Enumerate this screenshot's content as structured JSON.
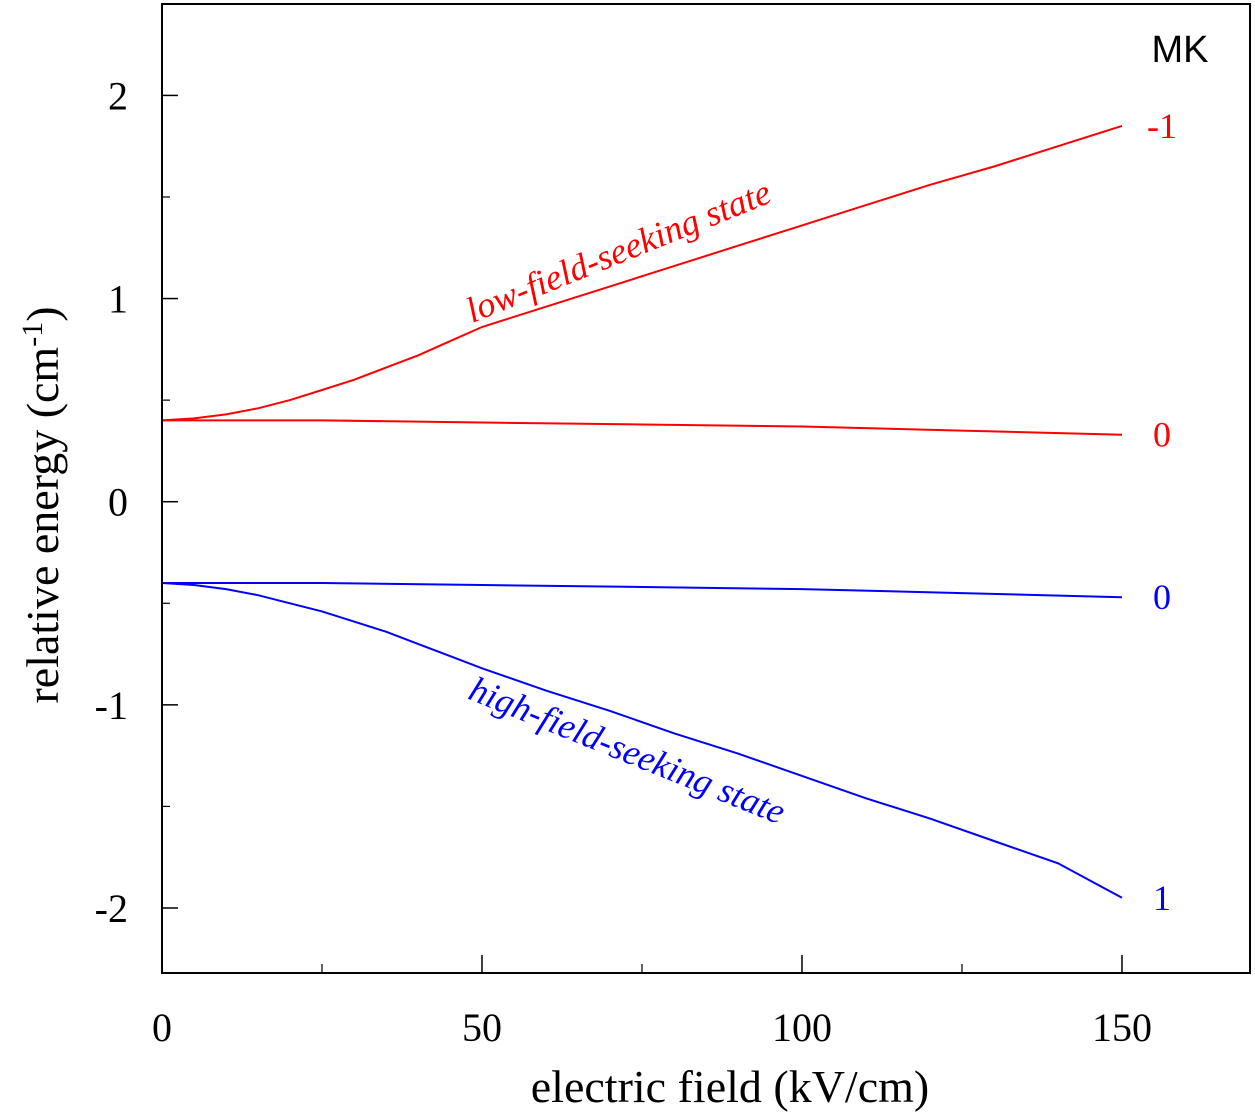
{
  "chart_data": {
    "type": "line",
    "title": "",
    "xlabel": "electric field (kV/cm)",
    "ylabel_main": "relative energy (cm",
    "ylabel_sup": "-1",
    "ylabel_close": ")",
    "xlim": [
      0,
      170
    ],
    "ylim": [
      -2.32,
      2.45
    ],
    "x_ticks": [
      0,
      50,
      100,
      150
    ],
    "x_tick_labels": [
      "0",
      "50",
      "100",
      "150"
    ],
    "x_minor_ticks": [
      25,
      75,
      125
    ],
    "y_ticks": [
      -2,
      -1,
      0,
      1,
      2
    ],
    "y_tick_labels": [
      "-2",
      "-1",
      "0",
      "1",
      "2"
    ],
    "y_minor_ticks": [
      -1.5,
      -0.5,
      0.5,
      1.5
    ],
    "legend_title": "MK",
    "series": [
      {
        "name": "low-field-seeking state",
        "mk": "-1",
        "color": "#ff0000",
        "label_angle": -22,
        "x": [
          0,
          5,
          10,
          15,
          20,
          25,
          30,
          35,
          40,
          45,
          50,
          60,
          70,
          80,
          90,
          100,
          110,
          120,
          130,
          140,
          150
        ],
        "y": [
          0.4,
          0.41,
          0.43,
          0.46,
          0.5,
          0.55,
          0.6,
          0.66,
          0.72,
          0.79,
          0.86,
          0.96,
          1.06,
          1.16,
          1.26,
          1.36,
          1.46,
          1.56,
          1.65,
          1.75,
          1.85
        ]
      },
      {
        "name": "",
        "mk": "0",
        "color": "#ff0000",
        "x": [
          0,
          25,
          50,
          75,
          100,
          125,
          150
        ],
        "y": [
          0.4,
          0.4,
          0.39,
          0.38,
          0.37,
          0.35,
          0.33
        ]
      },
      {
        "name": "",
        "mk": "0",
        "color": "#0000ff",
        "x": [
          0,
          25,
          50,
          75,
          100,
          125,
          150
        ],
        "y": [
          -0.4,
          -0.4,
          -0.41,
          -0.42,
          -0.43,
          -0.45,
          -0.47
        ]
      },
      {
        "name": "high-field-seeking state",
        "mk": "1",
        "color": "#0000ff",
        "label_angle": 22,
        "x": [
          0,
          5,
          10,
          15,
          20,
          25,
          30,
          35,
          40,
          45,
          50,
          60,
          70,
          80,
          90,
          100,
          110,
          120,
          130,
          140,
          150
        ],
        "y": [
          -0.4,
          -0.41,
          -0.43,
          -0.46,
          -0.5,
          -0.54,
          -0.59,
          -0.64,
          -0.7,
          -0.76,
          -0.82,
          -0.93,
          -1.03,
          -1.14,
          -1.24,
          -1.35,
          -1.46,
          -1.56,
          -1.67,
          -1.78,
          -1.95
        ]
      }
    ]
  }
}
